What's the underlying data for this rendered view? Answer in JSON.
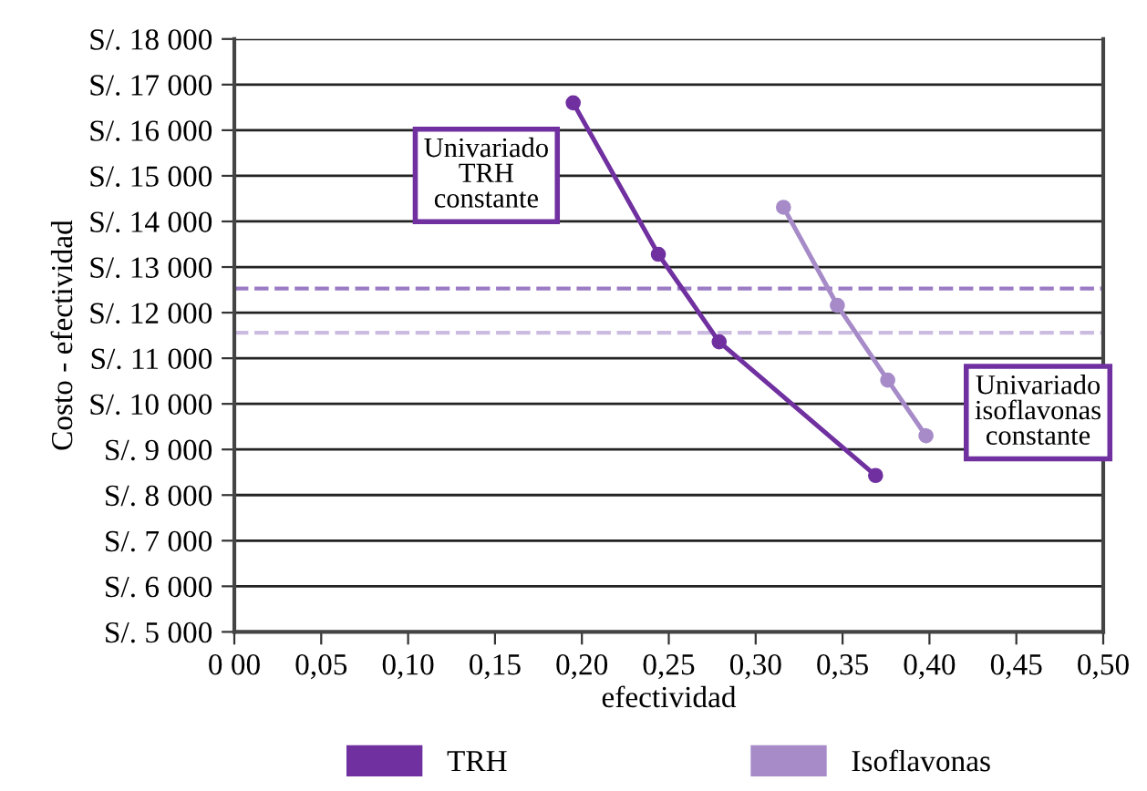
{
  "chart_data": {
    "type": "line",
    "xlabel": "efectividad",
    "ylabel": "Costo - efectividad",
    "series": [
      {
        "name": "TRH",
        "color": "#7030a0",
        "x": [
          0.195,
          0.244,
          0.279,
          0.369
        ],
        "values": [
          16600,
          13280,
          11360,
          8430
        ]
      },
      {
        "name": "Isoflavonas",
        "color": "#a68bc8",
        "x": [
          0.316,
          0.347,
          0.376,
          0.398
        ],
        "values": [
          14310,
          12160,
          10520,
          9300
        ]
      }
    ],
    "xlim": [
      0,
      0.5
    ],
    "xticks": [
      {
        "value": 0,
        "label": "0 00"
      },
      {
        "value": 0.05,
        "label": "0,05"
      },
      {
        "value": 0.1,
        "label": "0,10"
      },
      {
        "value": 0.15,
        "label": "0,15"
      },
      {
        "value": 0.2,
        "label": "0,20"
      },
      {
        "value": 0.25,
        "label": "0,25"
      },
      {
        "value": 0.3,
        "label": "0,30"
      },
      {
        "value": 0.35,
        "label": "0,35"
      },
      {
        "value": 0.4,
        "label": "0,40"
      },
      {
        "value": 0.45,
        "label": "0,45"
      },
      {
        "value": 0.5,
        "label": "0,50"
      }
    ],
    "ylim": [
      5000,
      18000
    ],
    "yticks": [
      {
        "value": 5000,
        "label": "S/. 5 000"
      },
      {
        "value": 6000,
        "label": "S/. 6 000"
      },
      {
        "value": 7000,
        "label": "S/. 7 000"
      },
      {
        "value": 8000,
        "label": "S/. 8 000"
      },
      {
        "value": 9000,
        "label": "S/. 9 000"
      },
      {
        "value": 10000,
        "label": "S/. 10 000"
      },
      {
        "value": 11000,
        "label": "S/. 11 000"
      },
      {
        "value": 12000,
        "label": "S/. 12 000"
      },
      {
        "value": 13000,
        "label": "S/. 13 000"
      },
      {
        "value": 14000,
        "label": "S/. 14 000"
      },
      {
        "value": 15000,
        "label": "S/. 15 000"
      },
      {
        "value": 16000,
        "label": "S/. 16 000"
      },
      {
        "value": 17000,
        "label": "S/. 17 000"
      },
      {
        "value": 18000,
        "label": "S/. 18 000"
      }
    ],
    "ref_lines": [
      {
        "axis": "y",
        "value": 12530,
        "color": "#9b7bc4",
        "line_style": "dashed"
      },
      {
        "axis": "y",
        "value": 11560,
        "color": "#cbbbe0",
        "line_style": "dashed"
      }
    ],
    "annotations": [
      "Univariado\nTRH\nconstante",
      "Univariado\nisoflavonas\nconstante"
    ],
    "grid": "y",
    "legend": "bottom",
    "marker": "circle",
    "line_style": "solid"
  }
}
